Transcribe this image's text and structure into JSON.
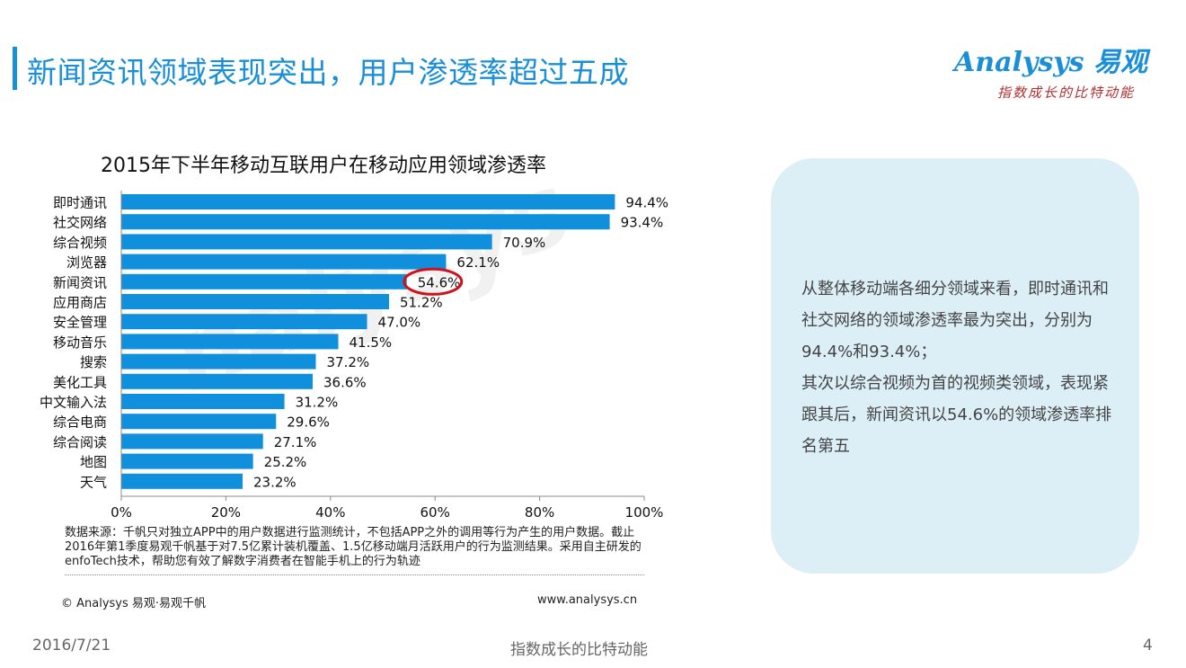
{
  "header": {
    "title": "新闻资讯领域表现突出，用户渗透率超过五成",
    "logo_brand": "Analysys 易观",
    "logo_tagline": "指数成长的比特动能"
  },
  "colors": {
    "accent": "#1a8fd8",
    "bar": "#0f8fdc",
    "highlight_ring": "#d0101a",
    "insight_bg": "#dceef6"
  },
  "chart_data": {
    "type": "bar",
    "orientation": "horizontal",
    "title": "2015年下半年移动互联用户在移动应用领域渗透率",
    "categories": [
      "即时通讯",
      "社交网络",
      "综合视频",
      "浏览器",
      "新闻资讯",
      "应用商店",
      "安全管理",
      "移动音乐",
      "搜索",
      "美化工具",
      "中文输入法",
      "综合电商",
      "综合阅读",
      "地图",
      "天气"
    ],
    "values": [
      94.4,
      93.4,
      70.9,
      62.1,
      54.6,
      51.2,
      47.0,
      41.5,
      37.2,
      36.6,
      31.2,
      29.6,
      27.1,
      25.2,
      23.2
    ],
    "value_labels": [
      "94.4%",
      "93.4%",
      "70.9%",
      "62.1%",
      "54.6%",
      "51.2%",
      "47.0%",
      "41.5%",
      "37.2%",
      "36.6%",
      "31.2%",
      "29.6%",
      "27.1%",
      "25.2%",
      "23.2%"
    ],
    "xlim": [
      0,
      100
    ],
    "xticks": [
      0,
      20,
      40,
      60,
      80,
      100
    ],
    "xtick_labels": [
      "0%",
      "20%",
      "40%",
      "60%",
      "80%",
      "100%"
    ],
    "highlight_category": "新闻资讯",
    "grid": false,
    "legend": "none"
  },
  "source": {
    "note": "数据来源：千帆只对独立APP中的用户数据进行监测统计，不包括APP之外的调用等行为产生的用户数据。截止2016年第1季度易观千帆基于对7.5亿累计装机覆盖、1.5亿移动端月活跃用户的行为监测结果。采用自主研发的enfoTech技术，帮助您有效了解数字消费者在智能手机上的行为轨迹",
    "copyright": "© Analysys 易观·易观千帆",
    "website": "www.analysys.cn"
  },
  "watermark": "nalysys",
  "insight": {
    "paragraph1": "从整体移动端各细分领域来看，即时通讯和社交网络的领域渗透率最为突出，分别为94.4%和93.4%；",
    "paragraph2": "其次以综合视频为首的视频类领域，表现紧跟其后，新闻资讯以54.6%的领域渗透率排名第五"
  },
  "footer": {
    "date": "2016/7/21",
    "slogan": "指数成长的比特动能",
    "page": "4"
  }
}
